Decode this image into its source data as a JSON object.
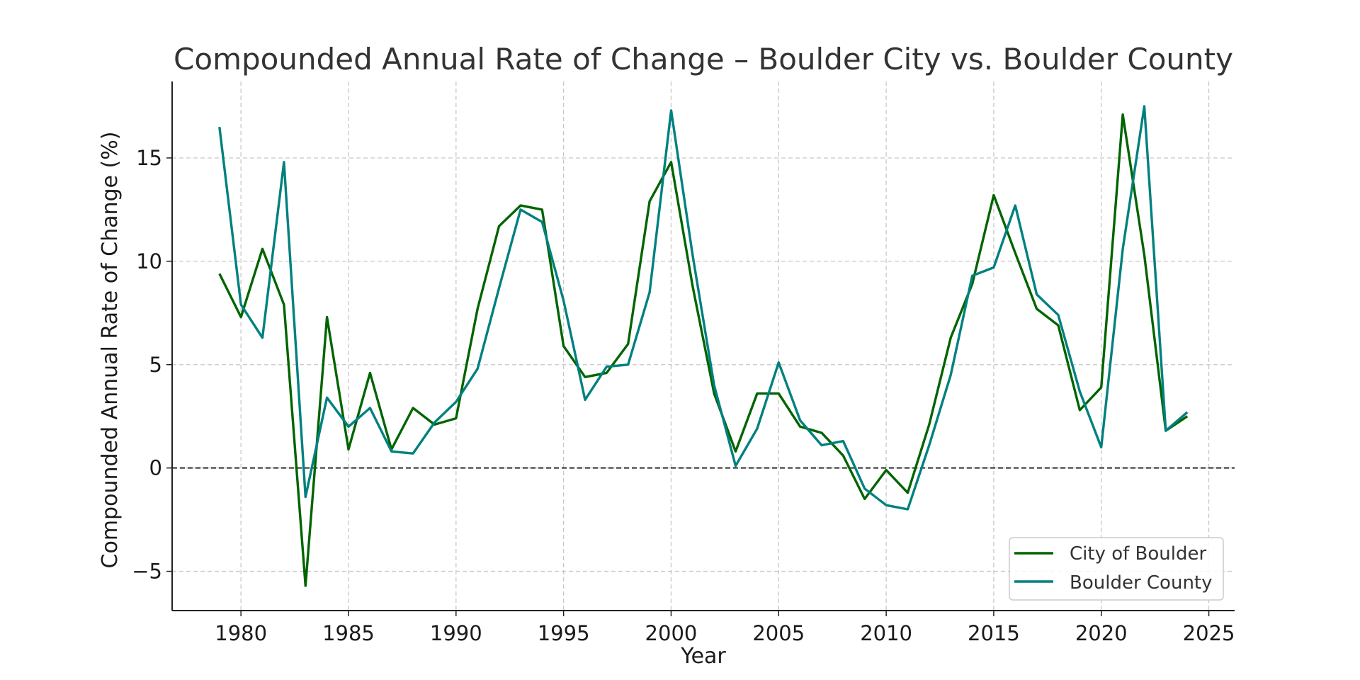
{
  "chart_data": {
    "type": "line",
    "title": "Compounded Annual Rate of Change – Boulder City vs. Boulder County",
    "xlabel": "Year",
    "ylabel": "Compounded Annual Rate of Change (%)",
    "xlim": [
      1976.8,
      2026.2
    ],
    "ylim": [
      -6.9,
      18.7
    ],
    "x_ticks": [
      1980,
      1985,
      1990,
      1995,
      2000,
      2005,
      2010,
      2015,
      2020,
      2025
    ],
    "y_ticks": [
      -5,
      0,
      5,
      10,
      15
    ],
    "y_tick_labels": [
      "−5",
      "0",
      "5",
      "10",
      "15"
    ],
    "grid": true,
    "reference_line_y": 0,
    "legend_position": "bottom-right",
    "x": [
      1979,
      1980,
      1981,
      1982,
      1983,
      1984,
      1985,
      1986,
      1987,
      1988,
      1989,
      1990,
      1991,
      1992,
      1993,
      1994,
      1995,
      1996,
      1997,
      1998,
      1999,
      2000,
      2001,
      2002,
      2003,
      2004,
      2005,
      2006,
      2007,
      2008,
      2009,
      2010,
      2011,
      2012,
      2013,
      2014,
      2015,
      2016,
      2017,
      2018,
      2019,
      2020,
      2021,
      2022,
      2023,
      2024
    ],
    "series": [
      {
        "name": "City of Boulder",
        "color": "#006400",
        "values": [
          9.4,
          7.3,
          10.6,
          7.9,
          -5.7,
          7.3,
          0.9,
          4.6,
          0.9,
          2.9,
          2.1,
          2.4,
          7.7,
          11.7,
          12.7,
          12.5,
          5.9,
          4.4,
          4.6,
          6.0,
          12.9,
          14.8,
          8.8,
          3.6,
          0.8,
          3.6,
          3.6,
          2.0,
          1.7,
          0.6,
          -1.5,
          -0.1,
          -1.2,
          2.1,
          6.3,
          8.9,
          13.2,
          10.4,
          7.7,
          6.9,
          2.8,
          3.9,
          17.1,
          10.3,
          1.8,
          2.5
        ]
      },
      {
        "name": "Boulder County",
        "color": "#008080",
        "values": [
          16.5,
          7.9,
          6.3,
          14.8,
          -1.4,
          3.4,
          2.0,
          2.9,
          0.8,
          0.7,
          2.2,
          3.2,
          4.8,
          8.7,
          12.5,
          11.9,
          8.1,
          3.3,
          4.9,
          5.0,
          8.5,
          17.3,
          10.3,
          4.0,
          0.1,
          1.9,
          5.1,
          2.3,
          1.1,
          1.3,
          -1.0,
          -1.8,
          -2.0,
          1.1,
          4.5,
          9.3,
          9.7,
          12.7,
          8.4,
          7.4,
          3.7,
          1.0,
          10.6,
          17.5,
          1.8,
          2.7
        ]
      }
    ]
  }
}
